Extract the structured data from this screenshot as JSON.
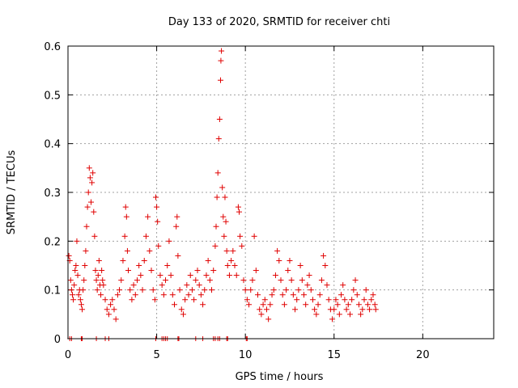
{
  "chart_data": {
    "type": "scatter",
    "title": "Day 133 of 2020, SRMTID for receiver chti",
    "xlabel": "GPS time / hours",
    "ylabel": "SRMTID / TECUs",
    "xlim": [
      0,
      24
    ],
    "ylim": [
      0,
      0.6
    ],
    "xticks": [
      0,
      5,
      10,
      15,
      20
    ],
    "yticks": [
      0,
      0.1,
      0.2,
      0.3,
      0.4,
      0.5,
      0.6
    ],
    "ytick_labels": [
      "0",
      "0.1",
      "0.2",
      "0.3",
      "0.4",
      "0.5",
      "0.6"
    ],
    "grid": true,
    "marker": "+",
    "color": "#e00000",
    "series": [
      {
        "name": "SRMTID",
        "points": [
          [
            0.05,
            0.17
          ],
          [
            0.1,
            0.16
          ],
          [
            0.15,
            0.12
          ],
          [
            0.2,
            0.1
          ],
          [
            0.25,
            0.09
          ],
          [
            0.3,
            0.08
          ],
          [
            0.35,
            0.11
          ],
          [
            0.4,
            0.14
          ],
          [
            0.45,
            0.15
          ],
          [
            0.5,
            0.2
          ],
          [
            0.55,
            0.13
          ],
          [
            0.6,
            0.09
          ],
          [
            0.65,
            0.1
          ],
          [
            0.7,
            0.08
          ],
          [
            0.75,
            0.07
          ],
          [
            0.8,
            0.06
          ],
          [
            0.85,
            0.1
          ],
          [
            0.9,
            0.12
          ],
          [
            0.95,
            0.15
          ],
          [
            1.0,
            0.18
          ],
          [
            1.05,
            0.23
          ],
          [
            1.1,
            0.27
          ],
          [
            1.15,
            0.3
          ],
          [
            1.2,
            0.35
          ],
          [
            1.25,
            0.33
          ],
          [
            1.3,
            0.28
          ],
          [
            1.35,
            0.32
          ],
          [
            1.4,
            0.34
          ],
          [
            1.45,
            0.26
          ],
          [
            1.5,
            0.21
          ],
          [
            1.55,
            0.14
          ],
          [
            1.6,
            0.12
          ],
          [
            1.65,
            0.1
          ],
          [
            1.7,
            0.13
          ],
          [
            1.75,
            0.16
          ],
          [
            1.8,
            0.11
          ],
          [
            1.85,
            0.09
          ],
          [
            1.9,
            0.14
          ],
          [
            1.95,
            0.12
          ],
          [
            2.0,
            0.11
          ],
          [
            2.1,
            0.08
          ],
          [
            2.2,
            0.06
          ],
          [
            2.3,
            0.05
          ],
          [
            2.4,
            0.07
          ],
          [
            2.5,
            0.08
          ],
          [
            2.6,
            0.06
          ],
          [
            2.7,
            0.04
          ],
          [
            2.8,
            0.09
          ],
          [
            2.9,
            0.1
          ],
          [
            3.0,
            0.12
          ],
          [
            3.1,
            0.16
          ],
          [
            3.2,
            0.21
          ],
          [
            3.25,
            0.27
          ],
          [
            3.3,
            0.25
          ],
          [
            3.35,
            0.18
          ],
          [
            3.4,
            0.14
          ],
          [
            3.5,
            0.1
          ],
          [
            3.6,
            0.08
          ],
          [
            3.7,
            0.11
          ],
          [
            3.8,
            0.09
          ],
          [
            3.9,
            0.12
          ],
          [
            4.0,
            0.15
          ],
          [
            4.1,
            0.13
          ],
          [
            4.2,
            0.1
          ],
          [
            4.3,
            0.16
          ],
          [
            4.4,
            0.21
          ],
          [
            4.5,
            0.25
          ],
          [
            4.6,
            0.18
          ],
          [
            4.7,
            0.14
          ],
          [
            4.8,
            0.1
          ],
          [
            4.9,
            0.08
          ],
          [
            4.95,
            0.29
          ],
          [
            5.0,
            0.27
          ],
          [
            5.05,
            0.24
          ],
          [
            5.1,
            0.19
          ],
          [
            5.2,
            0.13
          ],
          [
            5.3,
            0.11
          ],
          [
            5.4,
            0.09
          ],
          [
            5.5,
            0.12
          ],
          [
            5.6,
            0.15
          ],
          [
            5.7,
            0.2
          ],
          [
            5.8,
            0.13
          ],
          [
            5.9,
            0.09
          ],
          [
            6.0,
            0.07
          ],
          [
            6.1,
            0.23
          ],
          [
            6.15,
            0.25
          ],
          [
            6.2,
            0.17
          ],
          [
            6.3,
            0.1
          ],
          [
            6.4,
            0.06
          ],
          [
            6.5,
            0.05
          ],
          [
            6.6,
            0.08
          ],
          [
            6.7,
            0.11
          ],
          [
            6.8,
            0.09
          ],
          [
            6.9,
            0.13
          ],
          [
            7.0,
            0.1
          ],
          [
            7.1,
            0.08
          ],
          [
            7.2,
            0.12
          ],
          [
            7.3,
            0.14
          ],
          [
            7.4,
            0.11
          ],
          [
            7.5,
            0.09
          ],
          [
            7.6,
            0.07
          ],
          [
            7.7,
            0.1
          ],
          [
            7.8,
            0.13
          ],
          [
            7.9,
            0.16
          ],
          [
            8.0,
            0.12
          ],
          [
            8.1,
            0.1
          ],
          [
            8.2,
            0.14
          ],
          [
            8.3,
            0.19
          ],
          [
            8.35,
            0.23
          ],
          [
            8.4,
            0.29
          ],
          [
            8.45,
            0.34
          ],
          [
            8.5,
            0.41
          ],
          [
            8.55,
            0.45
          ],
          [
            8.6,
            0.53
          ],
          [
            8.62,
            0.57
          ],
          [
            8.65,
            0.59
          ],
          [
            8.7,
            0.31
          ],
          [
            8.75,
            0.25
          ],
          [
            8.8,
            0.21
          ],
          [
            8.85,
            0.29
          ],
          [
            8.9,
            0.24
          ],
          [
            8.95,
            0.18
          ],
          [
            9.0,
            0.15
          ],
          [
            9.1,
            0.13
          ],
          [
            9.2,
            0.16
          ],
          [
            9.3,
            0.18
          ],
          [
            9.4,
            0.15
          ],
          [
            9.5,
            0.13
          ],
          [
            9.6,
            0.27
          ],
          [
            9.65,
            0.26
          ],
          [
            9.7,
            0.21
          ],
          [
            9.8,
            0.19
          ],
          [
            9.9,
            0.12
          ],
          [
            10.0,
            0.1
          ],
          [
            10.1,
            0.08
          ],
          [
            10.2,
            0.07
          ],
          [
            10.3,
            0.1
          ],
          [
            10.4,
            0.12
          ],
          [
            10.5,
            0.21
          ],
          [
            10.6,
            0.14
          ],
          [
            10.7,
            0.09
          ],
          [
            10.8,
            0.06
          ],
          [
            10.9,
            0.05
          ],
          [
            11.0,
            0.07
          ],
          [
            11.1,
            0.08
          ],
          [
            11.2,
            0.06
          ],
          [
            11.3,
            0.04
          ],
          [
            11.4,
            0.07
          ],
          [
            11.5,
            0.09
          ],
          [
            11.6,
            0.1
          ],
          [
            11.7,
            0.13
          ],
          [
            11.8,
            0.18
          ],
          [
            11.9,
            0.16
          ],
          [
            12.0,
            0.12
          ],
          [
            12.1,
            0.09
          ],
          [
            12.2,
            0.07
          ],
          [
            12.3,
            0.1
          ],
          [
            12.4,
            0.14
          ],
          [
            12.5,
            0.16
          ],
          [
            12.6,
            0.12
          ],
          [
            12.7,
            0.09
          ],
          [
            12.8,
            0.06
          ],
          [
            12.9,
            0.08
          ],
          [
            13.0,
            0.1
          ],
          [
            13.1,
            0.15
          ],
          [
            13.2,
            0.12
          ],
          [
            13.3,
            0.09
          ],
          [
            13.4,
            0.07
          ],
          [
            13.5,
            0.11
          ],
          [
            13.6,
            0.13
          ],
          [
            13.7,
            0.1
          ],
          [
            13.8,
            0.08
          ],
          [
            13.9,
            0.06
          ],
          [
            14.0,
            0.05
          ],
          [
            14.1,
            0.07
          ],
          [
            14.2,
            0.09
          ],
          [
            14.3,
            0.12
          ],
          [
            14.4,
            0.17
          ],
          [
            14.5,
            0.15
          ],
          [
            14.6,
            0.11
          ],
          [
            14.7,
            0.08
          ],
          [
            14.8,
            0.06
          ],
          [
            14.9,
            0.04
          ],
          [
            15.0,
            0.06
          ],
          [
            15.1,
            0.08
          ],
          [
            15.2,
            0.07
          ],
          [
            15.3,
            0.05
          ],
          [
            15.4,
            0.09
          ],
          [
            15.5,
            0.11
          ],
          [
            15.6,
            0.08
          ],
          [
            15.7,
            0.06
          ],
          [
            15.8,
            0.07
          ],
          [
            15.9,
            0.05
          ],
          [
            16.0,
            0.08
          ],
          [
            16.1,
            0.1
          ],
          [
            16.2,
            0.12
          ],
          [
            16.3,
            0.09
          ],
          [
            16.4,
            0.07
          ],
          [
            16.5,
            0.05
          ],
          [
            16.6,
            0.06
          ],
          [
            16.7,
            0.08
          ],
          [
            16.8,
            0.1
          ],
          [
            16.9,
            0.07
          ],
          [
            17.0,
            0.06
          ],
          [
            17.1,
            0.08
          ],
          [
            17.2,
            0.09
          ],
          [
            17.3,
            0.07
          ],
          [
            17.35,
            0.06
          ]
        ]
      }
    ]
  }
}
